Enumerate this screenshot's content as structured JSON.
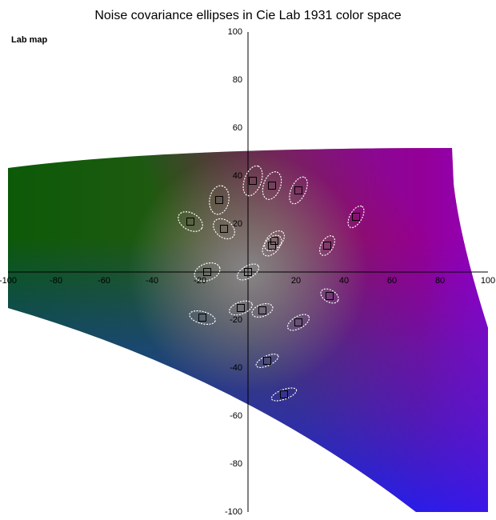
{
  "chart_data": {
    "type": "scatter",
    "title": "Noise covariance ellipses in Cie Lab 1931 color space",
    "subtitle": "Lab map",
    "xlim": [
      -100,
      100
    ],
    "ylim": [
      -100,
      100
    ],
    "xticks": [
      -100,
      -80,
      -60,
      -40,
      -20,
      20,
      40,
      60,
      80,
      100
    ],
    "yticks": [
      -100,
      -80,
      -60,
      -40,
      -20,
      20,
      40,
      60,
      80,
      100
    ],
    "grid": false,
    "marker_color": "#000000",
    "ellipse_color": "#ffffff",
    "x": [
      2,
      10,
      21,
      -12,
      45,
      -24,
      -10,
      11,
      10,
      33,
      -17,
      0,
      34,
      -3,
      6,
      -19,
      21,
      8,
      15
    ],
    "y": [
      38,
      36,
      34,
      30,
      23,
      21,
      18,
      13,
      11,
      11,
      0,
      0,
      -10,
      -15,
      -16,
      -19,
      -21,
      -37,
      -51
    ],
    "ellipse_major": [
      6.5,
      6,
      6,
      6,
      5,
      5.5,
      5,
      5,
      5,
      4.5,
      5.5,
      5,
      4,
      5,
      4.5,
      5.5,
      5,
      5,
      5.5
    ],
    "ellipse_minor": [
      3.5,
      3.5,
      3,
      4,
      2.5,
      3.5,
      3.5,
      3,
      3,
      2.5,
      3.5,
      2.5,
      2.5,
      2.5,
      2.5,
      2.5,
      2.5,
      2,
      2
    ],
    "ellipse_angle": [
      -70,
      -70,
      -65,
      -80,
      -60,
      30,
      40,
      -45,
      -50,
      -60,
      -20,
      -30,
      30,
      -20,
      -20,
      15,
      -30,
      -25,
      -20
    ]
  }
}
